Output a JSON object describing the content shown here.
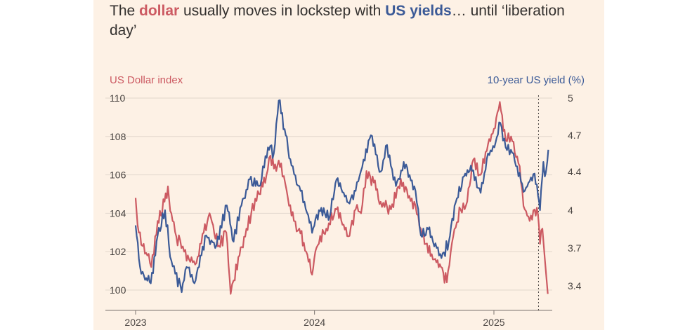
{
  "header": {
    "title_parts": [
      "The ",
      "dollar",
      " usually moves in lockstep with ",
      "US yields",
      "… until ‘liberation day’"
    ]
  },
  "colors": {
    "dollar": "#cc5a62",
    "yield": "#3b5a97",
    "grid": "#e1d6cc",
    "background": "#fdf1e5"
  },
  "chart_data": {
    "type": "line",
    "title": "The dollar usually moves in lockstep with US yields… until ‘liberation day’",
    "grid": true,
    "x_ticks": [
      "2023",
      "2024",
      "2025"
    ],
    "annotation": "dotted vertical line at ‘liberation day’ (April 2025)",
    "left_axis": {
      "label": "US Dollar index",
      "ticks": [
        100,
        102,
        104,
        106,
        108,
        110
      ],
      "range": [
        99.5,
        110.5
      ]
    },
    "right_axis": {
      "label": "10-year US yield (%)",
      "ticks": [
        3.4,
        3.7,
        4,
        4.4,
        4.7,
        5
      ],
      "range": [
        3.34,
        5.07
      ]
    },
    "x_range": [
      "2023-01-01",
      "2025-04-30"
    ],
    "series": [
      {
        "name": "US Dollar index",
        "axis": "left",
        "color": "#cc5a62",
        "points": [
          [
            "2023-01-01",
            104.8
          ],
          [
            "2023-01-05",
            103.4
          ],
          [
            "2023-01-15",
            102.3
          ],
          [
            "2023-01-25",
            101.8
          ],
          [
            "2023-02-02",
            101.2
          ],
          [
            "2023-02-15",
            103.6
          ],
          [
            "2023-03-01",
            104.6
          ],
          [
            "2023-03-08",
            105.4
          ],
          [
            "2023-03-15",
            104.0
          ],
          [
            "2023-03-25",
            102.8
          ],
          [
            "2023-04-10",
            102.0
          ],
          [
            "2023-04-20",
            101.6
          ],
          [
            "2023-05-05",
            101.4
          ],
          [
            "2023-05-20",
            103.0
          ],
          [
            "2023-06-01",
            104.0
          ],
          [
            "2023-06-20",
            102.3
          ],
          [
            "2023-07-05",
            103.0
          ],
          [
            "2023-07-14",
            99.8
          ],
          [
            "2023-07-20",
            100.5
          ],
          [
            "2023-08-01",
            101.8
          ],
          [
            "2023-08-15",
            103.2
          ],
          [
            "2023-08-25",
            104.0
          ],
          [
            "2023-09-10",
            105.0
          ],
          [
            "2023-09-25",
            106.0
          ],
          [
            "2023-10-03",
            107.0
          ],
          [
            "2023-10-15",
            106.2
          ],
          [
            "2023-10-25",
            106.6
          ],
          [
            "2023-11-05",
            105.2
          ],
          [
            "2023-11-20",
            103.6
          ],
          [
            "2023-12-01",
            103.2
          ],
          [
            "2023-12-15",
            102.0
          ],
          [
            "2023-12-27",
            100.8
          ],
          [
            "2024-01-05",
            102.2
          ],
          [
            "2024-01-25",
            103.2
          ],
          [
            "2024-02-15",
            104.2
          ],
          [
            "2024-03-10",
            102.8
          ],
          [
            "2024-03-25",
            104.2
          ],
          [
            "2024-04-05",
            104.0
          ],
          [
            "2024-04-16",
            106.2
          ],
          [
            "2024-05-01",
            105.6
          ],
          [
            "2024-05-15",
            104.6
          ],
          [
            "2024-06-05",
            104.2
          ],
          [
            "2024-06-25",
            105.8
          ],
          [
            "2024-07-10",
            104.8
          ],
          [
            "2024-07-25",
            104.4
          ],
          [
            "2024-08-05",
            103.2
          ],
          [
            "2024-08-15",
            102.4
          ],
          [
            "2024-09-01",
            101.6
          ],
          [
            "2024-09-15",
            101.2
          ],
          [
            "2024-09-27",
            100.4
          ],
          [
            "2024-10-10",
            102.8
          ],
          [
            "2024-10-25",
            104.2
          ],
          [
            "2024-11-05",
            104.4
          ],
          [
            "2024-11-20",
            106.8
          ],
          [
            "2024-12-05",
            106.0
          ],
          [
            "2024-12-20",
            107.6
          ],
          [
            "2025-01-01",
            108.4
          ],
          [
            "2025-01-13",
            109.8
          ],
          [
            "2025-01-25",
            107.8
          ],
          [
            "2025-02-05",
            108.0
          ],
          [
            "2025-02-20",
            106.6
          ],
          [
            "2025-03-05",
            104.2
          ],
          [
            "2025-03-15",
            103.6
          ],
          [
            "2025-03-25",
            104.2
          ],
          [
            "2025-04-01",
            103.9
          ],
          [
            "2025-04-05",
            102.4
          ],
          [
            "2025-04-10",
            103.2
          ],
          [
            "2025-04-15",
            101.6
          ],
          [
            "2025-04-21",
            99.8
          ]
        ]
      },
      {
        "name": "10-year US yield (%)",
        "axis": "right",
        "color": "#3b5a97",
        "points": [
          [
            "2023-01-01",
            3.88
          ],
          [
            "2023-01-10",
            3.55
          ],
          [
            "2023-01-18",
            3.48
          ],
          [
            "2023-02-01",
            3.42
          ],
          [
            "2023-02-15",
            3.8
          ],
          [
            "2023-03-02",
            4.0
          ],
          [
            "2023-03-15",
            3.6
          ],
          [
            "2023-04-05",
            3.35
          ],
          [
            "2023-04-15",
            3.55
          ],
          [
            "2023-05-01",
            3.42
          ],
          [
            "2023-05-25",
            3.8
          ],
          [
            "2023-06-15",
            3.72
          ],
          [
            "2023-07-06",
            4.05
          ],
          [
            "2023-07-20",
            3.75
          ],
          [
            "2023-08-05",
            4.05
          ],
          [
            "2023-08-22",
            4.32
          ],
          [
            "2023-09-10",
            4.25
          ],
          [
            "2023-09-28",
            4.6
          ],
          [
            "2023-10-10",
            4.55
          ],
          [
            "2023-10-20",
            4.98
          ],
          [
            "2023-11-01",
            4.75
          ],
          [
            "2023-11-15",
            4.45
          ],
          [
            "2023-12-01",
            4.25
          ],
          [
            "2023-12-27",
            3.82
          ],
          [
            "2024-01-10",
            4.0
          ],
          [
            "2024-02-01",
            3.95
          ],
          [
            "2024-02-15",
            4.32
          ],
          [
            "2024-03-10",
            4.08
          ],
          [
            "2024-03-25",
            4.2
          ],
          [
            "2024-04-10",
            4.5
          ],
          [
            "2024-04-25",
            4.7
          ],
          [
            "2024-05-15",
            4.4
          ],
          [
            "2024-05-28",
            4.62
          ],
          [
            "2024-06-15",
            4.25
          ],
          [
            "2024-07-01",
            4.48
          ],
          [
            "2024-07-25",
            4.2
          ],
          [
            "2024-08-05",
            3.8
          ],
          [
            "2024-08-20",
            3.85
          ],
          [
            "2024-09-16",
            3.62
          ],
          [
            "2024-10-01",
            3.75
          ],
          [
            "2024-10-15",
            4.08
          ],
          [
            "2024-11-01",
            4.35
          ],
          [
            "2024-11-15",
            4.45
          ],
          [
            "2024-12-05",
            4.18
          ],
          [
            "2024-12-20",
            4.55
          ],
          [
            "2025-01-02",
            4.6
          ],
          [
            "2025-01-14",
            4.8
          ],
          [
            "2025-01-25",
            4.6
          ],
          [
            "2025-02-10",
            4.55
          ],
          [
            "2025-02-25",
            4.3
          ],
          [
            "2025-03-05",
            4.2
          ],
          [
            "2025-03-15",
            4.3
          ],
          [
            "2025-03-25",
            4.38
          ],
          [
            "2025-04-01",
            4.15
          ],
          [
            "2025-04-05",
            4.0
          ],
          [
            "2025-04-09",
            4.3
          ],
          [
            "2025-04-12",
            4.48
          ],
          [
            "2025-04-15",
            4.35
          ],
          [
            "2025-04-18",
            4.42
          ],
          [
            "2025-04-22",
            4.58
          ]
        ]
      }
    ]
  }
}
